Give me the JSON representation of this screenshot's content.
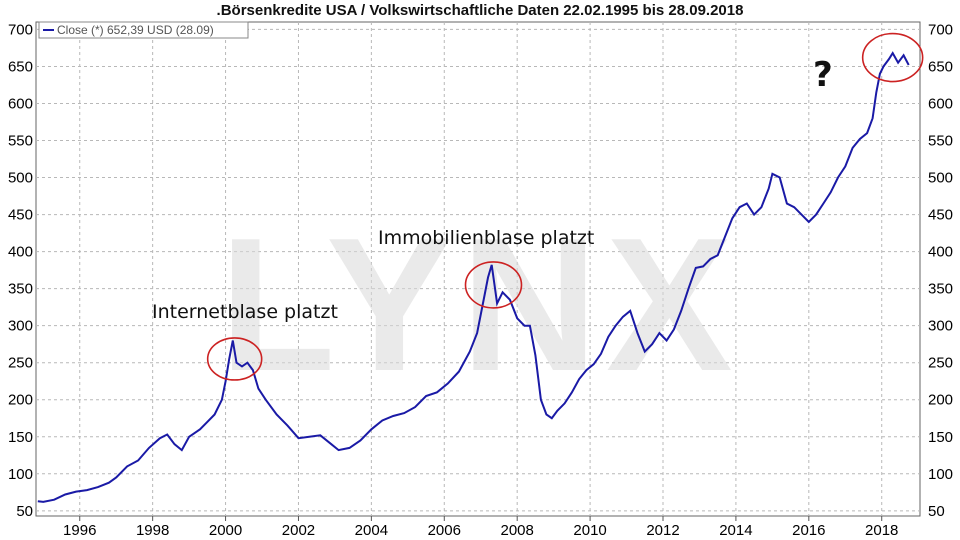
{
  "chart_data": {
    "type": "line",
    "title": ".Börsenkredite USA / Volkswirtschaftliche Daten 22.02.1995 bis 28.09.2018",
    "legend": "Close (*) 652,39 USD (28.09)",
    "watermark": "LYNX",
    "line_color": "#1a1aa6",
    "highlight_color": "#cc2222",
    "xlim": [
      1994.8,
      2019.05
    ],
    "ylim": [
      43,
      710
    ],
    "x_ticks": [
      "1996",
      "1998",
      "2000",
      "2002",
      "2004",
      "2006",
      "2008",
      "2010",
      "2012",
      "2014",
      "2016",
      "2018"
    ],
    "y_ticks": [
      "50",
      "100",
      "150",
      "200",
      "250",
      "300",
      "350",
      "400",
      "450",
      "500",
      "550",
      "600",
      "650",
      "700"
    ],
    "annotations": {
      "internet": "Internetblase platzt",
      "immobilien": "Immobilienblase platzt",
      "question": "?"
    },
    "series": [
      {
        "points": [
          [
            1994.85,
            63
          ],
          [
            1995.0,
            62
          ],
          [
            1995.3,
            65
          ],
          [
            1995.6,
            72
          ],
          [
            1995.9,
            76
          ],
          [
            1996.2,
            78
          ],
          [
            1996.5,
            82
          ],
          [
            1996.8,
            88
          ],
          [
            1997.0,
            95
          ],
          [
            1997.3,
            110
          ],
          [
            1997.6,
            118
          ],
          [
            1997.9,
            135
          ],
          [
            1998.2,
            148
          ],
          [
            1998.4,
            153
          ],
          [
            1998.6,
            140
          ],
          [
            1998.8,
            132
          ],
          [
            1999.0,
            150
          ],
          [
            1999.3,
            160
          ],
          [
            1999.5,
            170
          ],
          [
            1999.7,
            180
          ],
          [
            1999.9,
            200
          ],
          [
            2000.0,
            225
          ],
          [
            2000.1,
            255
          ],
          [
            2000.2,
            280
          ],
          [
            2000.3,
            250
          ],
          [
            2000.45,
            245
          ],
          [
            2000.6,
            250
          ],
          [
            2000.75,
            240
          ],
          [
            2000.9,
            215
          ],
          [
            2001.1,
            200
          ],
          [
            2001.4,
            180
          ],
          [
            2001.7,
            165
          ],
          [
            2002.0,
            148
          ],
          [
            2002.3,
            150
          ],
          [
            2002.6,
            152
          ],
          [
            2002.9,
            140
          ],
          [
            2003.1,
            132
          ],
          [
            2003.4,
            135
          ],
          [
            2003.7,
            145
          ],
          [
            2004.0,
            160
          ],
          [
            2004.3,
            172
          ],
          [
            2004.6,
            178
          ],
          [
            2004.9,
            182
          ],
          [
            2005.2,
            190
          ],
          [
            2005.5,
            205
          ],
          [
            2005.8,
            210
          ],
          [
            2006.1,
            222
          ],
          [
            2006.4,
            238
          ],
          [
            2006.7,
            265
          ],
          [
            2006.9,
            290
          ],
          [
            2007.1,
            340
          ],
          [
            2007.2,
            365
          ],
          [
            2007.3,
            382
          ],
          [
            2007.45,
            330
          ],
          [
            2007.6,
            345
          ],
          [
            2007.8,
            335
          ],
          [
            2008.0,
            310
          ],
          [
            2008.2,
            300
          ],
          [
            2008.35,
            300
          ],
          [
            2008.5,
            260
          ],
          [
            2008.65,
            200
          ],
          [
            2008.8,
            180
          ],
          [
            2008.95,
            175
          ],
          [
            2009.1,
            185
          ],
          [
            2009.3,
            195
          ],
          [
            2009.5,
            210
          ],
          [
            2009.7,
            228
          ],
          [
            2009.9,
            240
          ],
          [
            2010.1,
            248
          ],
          [
            2010.3,
            262
          ],
          [
            2010.5,
            285
          ],
          [
            2010.7,
            300
          ],
          [
            2010.9,
            312
          ],
          [
            2011.1,
            320
          ],
          [
            2011.3,
            290
          ],
          [
            2011.5,
            265
          ],
          [
            2011.7,
            275
          ],
          [
            2011.9,
            290
          ],
          [
            2012.1,
            280
          ],
          [
            2012.3,
            295
          ],
          [
            2012.5,
            320
          ],
          [
            2012.7,
            350
          ],
          [
            2012.9,
            378
          ],
          [
            2013.1,
            380
          ],
          [
            2013.3,
            390
          ],
          [
            2013.5,
            395
          ],
          [
            2013.7,
            420
          ],
          [
            2013.9,
            445
          ],
          [
            2014.1,
            460
          ],
          [
            2014.3,
            465
          ],
          [
            2014.5,
            450
          ],
          [
            2014.7,
            460
          ],
          [
            2014.9,
            485
          ],
          [
            2015.0,
            505
          ],
          [
            2015.2,
            500
          ],
          [
            2015.4,
            465
          ],
          [
            2015.6,
            460
          ],
          [
            2015.8,
            450
          ],
          [
            2016.0,
            440
          ],
          [
            2016.2,
            450
          ],
          [
            2016.4,
            465
          ],
          [
            2016.6,
            480
          ],
          [
            2016.8,
            500
          ],
          [
            2017.0,
            515
          ],
          [
            2017.2,
            540
          ],
          [
            2017.4,
            552
          ],
          [
            2017.6,
            560
          ],
          [
            2017.75,
            580
          ],
          [
            2017.85,
            615
          ],
          [
            2017.95,
            640
          ],
          [
            2018.05,
            650
          ],
          [
            2018.2,
            660
          ],
          [
            2018.3,
            668
          ],
          [
            2018.45,
            655
          ],
          [
            2018.6,
            665
          ],
          [
            2018.74,
            652
          ]
        ]
      }
    ]
  }
}
